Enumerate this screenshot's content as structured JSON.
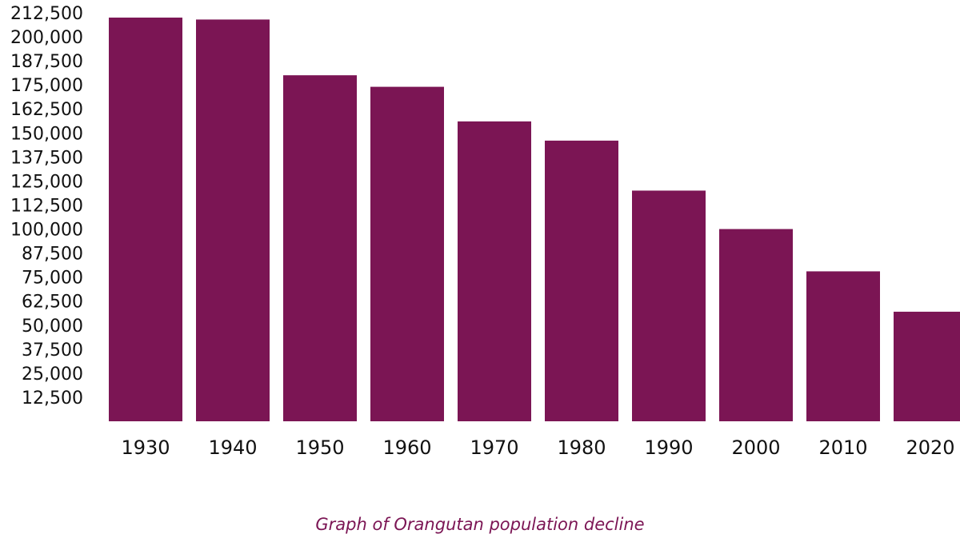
{
  "caption": "Graph of Orangutan population decline",
  "colors": {
    "bar": "#7b1554",
    "caption": "#7b1554",
    "text": "#111111"
  },
  "chart_data": {
    "type": "bar",
    "title": "",
    "xlabel": "",
    "ylabel": "",
    "ylim": [
      0,
      212500
    ],
    "yticks": [
      12500,
      25000,
      37500,
      50000,
      62500,
      75000,
      87500,
      100000,
      112500,
      125000,
      137500,
      150000,
      162500,
      175000,
      187500,
      200000,
      212500
    ],
    "ytick_labels": [
      "12,500",
      "25,000",
      "37,500",
      "50,000",
      "62,500",
      "75,000",
      "87,500",
      "100,000",
      "112,500",
      "125,000",
      "137,500",
      "150,000",
      "162,500",
      "175,000",
      "187,500",
      "200,000",
      "212,500"
    ],
    "categories": [
      "1930",
      "1940",
      "1950",
      "1960",
      "1970",
      "1980",
      "1990",
      "2000",
      "2010",
      "2020"
    ],
    "values": [
      210000,
      209000,
      180000,
      174000,
      156000,
      146000,
      120000,
      100000,
      78000,
      57000
    ],
    "grid": false,
    "legend": "none"
  }
}
